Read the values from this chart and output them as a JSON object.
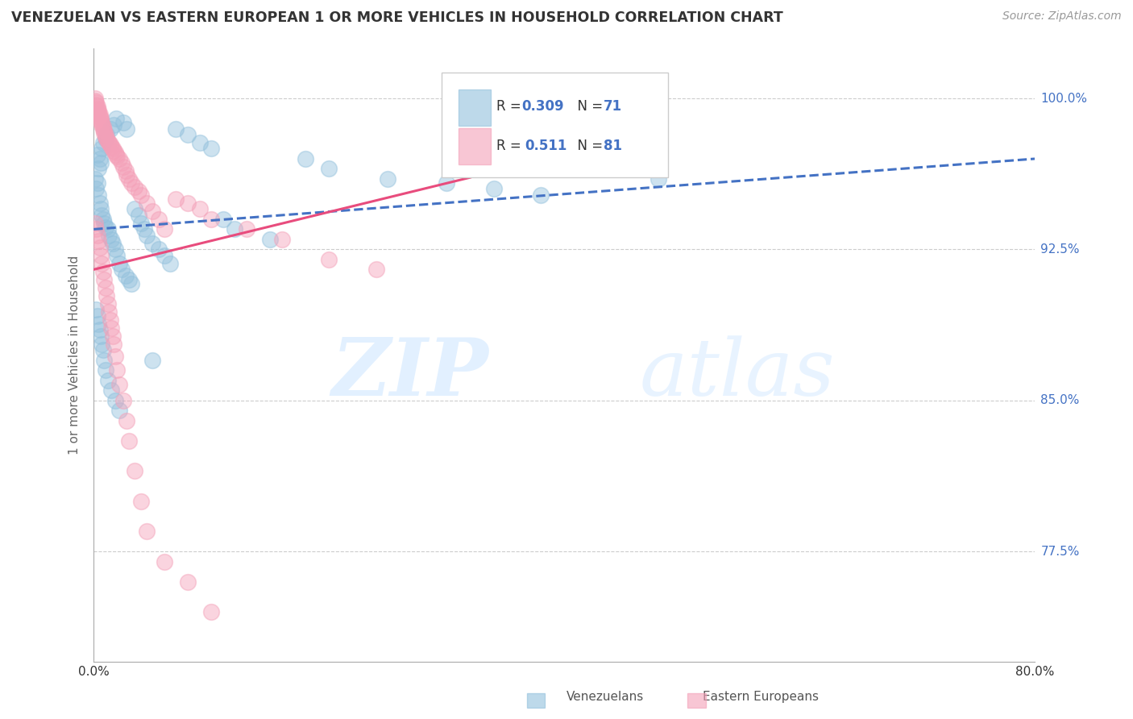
{
  "title": "VENEZUELAN VS EASTERN EUROPEAN 1 OR MORE VEHICLES IN HOUSEHOLD CORRELATION CHART",
  "source": "Source: ZipAtlas.com",
  "ylabel": "1 or more Vehicles in Household",
  "yticks": [
    1.0,
    0.925,
    0.85,
    0.775
  ],
  "ytick_labels": [
    "100.0%",
    "92.5%",
    "85.0%",
    "77.5%"
  ],
  "xmin": 0.0,
  "xmax": 0.8,
  "ymin": 0.72,
  "ymax": 1.025,
  "legend_blue_r": "0.309",
  "legend_blue_n": "71",
  "legend_pink_r": "0.511",
  "legend_pink_n": "81",
  "blue_color": "#92C0DC",
  "pink_color": "#F4A0B8",
  "blue_edge": "#6699CC",
  "pink_edge": "#E07090",
  "trendline_blue": "#4472C4",
  "trendline_pink": "#E84C7D",
  "watermark_zip": "ZIP",
  "watermark_atlas": "atlas",
  "grid_color": "#CCCCCC",
  "blue_scatter_x": [
    0.001,
    0.002,
    0.003,
    0.003,
    0.004,
    0.004,
    0.005,
    0.005,
    0.006,
    0.006,
    0.007,
    0.007,
    0.008,
    0.008,
    0.009,
    0.01,
    0.01,
    0.011,
    0.012,
    0.013,
    0.014,
    0.015,
    0.016,
    0.017,
    0.018,
    0.019,
    0.02,
    0.022,
    0.024,
    0.025,
    0.027,
    0.028,
    0.03,
    0.032,
    0.035,
    0.038,
    0.04,
    0.043,
    0.045,
    0.05,
    0.055,
    0.06,
    0.065,
    0.07,
    0.08,
    0.09,
    0.1,
    0.11,
    0.12,
    0.15,
    0.18,
    0.2,
    0.25,
    0.3,
    0.34,
    0.38,
    0.002,
    0.003,
    0.004,
    0.005,
    0.006,
    0.007,
    0.008,
    0.009,
    0.01,
    0.012,
    0.015,
    0.018,
    0.022,
    0.05,
    0.48
  ],
  "blue_scatter_y": [
    0.96,
    0.955,
    0.972,
    0.958,
    0.965,
    0.952,
    0.97,
    0.948,
    0.968,
    0.945,
    0.975,
    0.942,
    0.978,
    0.94,
    0.938,
    0.98,
    0.936,
    0.982,
    0.935,
    0.932,
    0.985,
    0.93,
    0.928,
    0.987,
    0.925,
    0.99,
    0.922,
    0.918,
    0.915,
    0.988,
    0.912,
    0.985,
    0.91,
    0.908,
    0.945,
    0.942,
    0.938,
    0.935,
    0.932,
    0.928,
    0.925,
    0.922,
    0.918,
    0.985,
    0.982,
    0.978,
    0.975,
    0.94,
    0.935,
    0.93,
    0.97,
    0.965,
    0.96,
    0.958,
    0.955,
    0.952,
    0.895,
    0.892,
    0.888,
    0.885,
    0.882,
    0.878,
    0.875,
    0.87,
    0.865,
    0.86,
    0.855,
    0.85,
    0.845,
    0.87,
    0.96
  ],
  "pink_scatter_x": [
    0.001,
    0.001,
    0.002,
    0.002,
    0.003,
    0.003,
    0.004,
    0.004,
    0.005,
    0.005,
    0.006,
    0.006,
    0.007,
    0.007,
    0.008,
    0.008,
    0.009,
    0.009,
    0.01,
    0.01,
    0.011,
    0.012,
    0.013,
    0.014,
    0.015,
    0.016,
    0.017,
    0.018,
    0.019,
    0.02,
    0.022,
    0.024,
    0.025,
    0.027,
    0.028,
    0.03,
    0.032,
    0.035,
    0.038,
    0.04,
    0.045,
    0.05,
    0.055,
    0.06,
    0.07,
    0.08,
    0.09,
    0.1,
    0.13,
    0.16,
    0.2,
    0.24,
    0.001,
    0.002,
    0.003,
    0.004,
    0.005,
    0.006,
    0.007,
    0.008,
    0.009,
    0.01,
    0.011,
    0.012,
    0.013,
    0.014,
    0.015,
    0.016,
    0.017,
    0.018,
    0.02,
    0.022,
    0.025,
    0.028,
    0.03,
    0.035,
    0.04,
    0.045,
    0.06,
    0.08,
    0.1
  ],
  "pink_scatter_y": [
    1.0,
    0.999,
    0.998,
    0.997,
    0.996,
    0.995,
    0.994,
    0.993,
    0.992,
    0.991,
    0.99,
    0.989,
    0.988,
    0.987,
    0.986,
    0.985,
    0.984,
    0.983,
    0.982,
    0.981,
    0.98,
    0.979,
    0.978,
    0.977,
    0.976,
    0.975,
    0.974,
    0.973,
    0.972,
    0.971,
    0.97,
    0.968,
    0.966,
    0.964,
    0.962,
    0.96,
    0.958,
    0.956,
    0.954,
    0.952,
    0.948,
    0.944,
    0.94,
    0.935,
    0.95,
    0.948,
    0.945,
    0.94,
    0.935,
    0.93,
    0.92,
    0.915,
    0.938,
    0.935,
    0.932,
    0.929,
    0.926,
    0.922,
    0.918,
    0.914,
    0.91,
    0.906,
    0.902,
    0.898,
    0.894,
    0.89,
    0.886,
    0.882,
    0.878,
    0.872,
    0.865,
    0.858,
    0.85,
    0.84,
    0.83,
    0.815,
    0.8,
    0.785,
    0.77,
    0.76,
    0.745
  ]
}
